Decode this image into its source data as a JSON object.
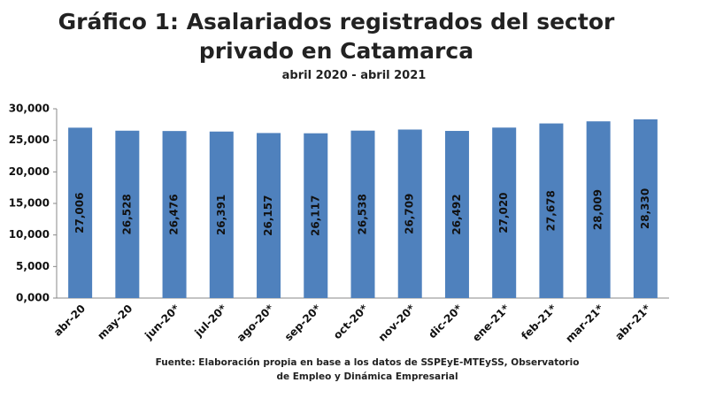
{
  "chart_data": {
    "type": "bar",
    "title": "Gráfico 1: Asalariados registrados del sector privado en Catamarca",
    "subtitle": "abril 2020 - abril 2021",
    "source": "Fuente: Elaboración propia en base a los datos de SSPEyE-MTEySS, Observatorio de Empleo y Dinámica Empresarial",
    "categories": [
      "abr-20",
      "may-20",
      "jun-20*",
      "jul-20*",
      "ago-20*",
      "sep-20*",
      "oct-20*",
      "nov-20*",
      "dic-20*",
      "ene-21*",
      "feb-21*",
      "mar-21*",
      "abr-21*"
    ],
    "values": [
      27006,
      26528,
      26476,
      26391,
      26157,
      26117,
      26538,
      26709,
      26492,
      27020,
      27678,
      28009,
      28330
    ],
    "value_labels": [
      "27,006",
      "26,528",
      "26,476",
      "26,391",
      "26,157",
      "26,117",
      "26,538",
      "26,709",
      "26,492",
      "27,020",
      "27,678",
      "28,009",
      "28,330"
    ],
    "color": "#4f81bd",
    "ylim": [
      0,
      30000
    ],
    "yticks": [
      {
        "value": 0,
        "label": "0,000"
      },
      {
        "value": 5000,
        "label": "5,000"
      },
      {
        "value": 10000,
        "label": "10,000"
      },
      {
        "value": 15000,
        "label": "15,000"
      },
      {
        "value": 20000,
        "label": "20,000"
      },
      {
        "value": 25000,
        "label": "25,000"
      },
      {
        "value": 30000,
        "label": "30,000"
      }
    ],
    "grid": false
  }
}
